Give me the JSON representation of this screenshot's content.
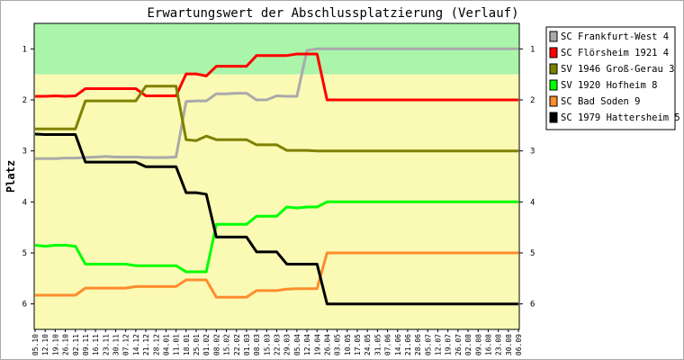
{
  "chart_data": {
    "type": "line",
    "title": "Erwartungswert der Abschlussplatzierung (Verlauf)",
    "ylabel": "Platz",
    "xlabel": "",
    "ylim": [
      0.5,
      6.5
    ],
    "y_inverted": true,
    "yticks": [
      1,
      2,
      3,
      4,
      5,
      6
    ],
    "grid": false,
    "legend_position": "right",
    "x": [
      "05.10",
      "12.10",
      "19.10",
      "26.10",
      "02.11",
      "09.11",
      "16.11",
      "23.11",
      "30.11",
      "07.12",
      "14.12",
      "21.12",
      "28.12",
      "04.01",
      "11.01",
      "18.01",
      "25.01",
      "01.02",
      "08.02",
      "15.02",
      "22.02",
      "01.03",
      "08.03",
      "15.03",
      "22.03",
      "29.03",
      "05.04",
      "12.04",
      "19.04",
      "26.04",
      "03.05",
      "10.05",
      "17.05",
      "24.05",
      "31.05",
      "07.06",
      "14.06",
      "21.06",
      "28.06",
      "05.07",
      "12.07",
      "19.07",
      "26.07",
      "02.08",
      "09.08",
      "16.08",
      "23.08",
      "30.08",
      "06.09"
    ],
    "bands": [
      {
        "from": 0.5,
        "to": 1.5,
        "color": "#aaf5aa"
      },
      {
        "from": 1.5,
        "to": 6.5,
        "color": "#fafab4"
      }
    ],
    "series": [
      {
        "name": "SC Frankfurt-West 4",
        "color": "#aaaaaa",
        "values": [
          3.15,
          3.15,
          3.15,
          3.14,
          3.14,
          3.13,
          3.12,
          3.11,
          3.12,
          3.12,
          3.12,
          3.13,
          3.13,
          3.13,
          3.12,
          2.03,
          2.02,
          2.02,
          1.88,
          1.88,
          1.87,
          1.87,
          2.0,
          2.0,
          1.92,
          1.93,
          1.93,
          1.03,
          1.0,
          1.0,
          1.0,
          1.0,
          1.0,
          1.0,
          1.0,
          1.0,
          1.0,
          1.0,
          1.0,
          1.0,
          1.0,
          1.0,
          1.0,
          1.0,
          1.0,
          1.0,
          1.0,
          1.0,
          1.0
        ]
      },
      {
        "name": "SC Flörsheim 1921 4",
        "color": "#ff0000",
        "values": [
          1.93,
          1.93,
          1.92,
          1.93,
          1.92,
          1.78,
          1.78,
          1.78,
          1.78,
          1.78,
          1.78,
          1.92,
          1.92,
          1.92,
          1.92,
          1.49,
          1.49,
          1.53,
          1.34,
          1.34,
          1.34,
          1.34,
          1.13,
          1.13,
          1.13,
          1.13,
          1.1,
          1.1,
          1.1,
          2.0,
          2.0,
          2.0,
          2.0,
          2.0,
          2.0,
          2.0,
          2.0,
          2.0,
          2.0,
          2.0,
          2.0,
          2.0,
          2.0,
          2.0,
          2.0,
          2.0,
          2.0,
          2.0,
          2.0
        ]
      },
      {
        "name": "SV 1946 Groß-Gerau 3",
        "color": "#808000",
        "values": [
          2.57,
          2.57,
          2.57,
          2.57,
          2.57,
          2.02,
          2.02,
          2.02,
          2.02,
          2.02,
          2.02,
          1.73,
          1.73,
          1.73,
          1.73,
          2.78,
          2.8,
          2.71,
          2.78,
          2.78,
          2.78,
          2.78,
          2.88,
          2.88,
          2.88,
          2.99,
          2.99,
          2.99,
          3.0,
          3.0,
          3.0,
          3.0,
          3.0,
          3.0,
          3.0,
          3.0,
          3.0,
          3.0,
          3.0,
          3.0,
          3.0,
          3.0,
          3.0,
          3.0,
          3.0,
          3.0,
          3.0,
          3.0,
          3.0
        ]
      },
      {
        "name": "SV 1920 Hofheim 8",
        "color": "#00ff00",
        "values": [
          4.85,
          4.87,
          4.85,
          4.85,
          4.87,
          5.22,
          5.22,
          5.22,
          5.22,
          5.22,
          5.25,
          5.25,
          5.25,
          5.25,
          5.25,
          5.37,
          5.37,
          5.37,
          4.44,
          4.44,
          4.44,
          4.44,
          4.28,
          4.28,
          4.28,
          4.1,
          4.12,
          4.1,
          4.1,
          4.0,
          4.0,
          4.0,
          4.0,
          4.0,
          4.0,
          4.0,
          4.0,
          4.0,
          4.0,
          4.0,
          4.0,
          4.0,
          4.0,
          4.0,
          4.0,
          4.0,
          4.0,
          4.0,
          4.0
        ]
      },
      {
        "name": "SC Bad Soden 9",
        "color": "#ff8c2d",
        "values": [
          5.83,
          5.83,
          5.83,
          5.83,
          5.83,
          5.69,
          5.69,
          5.69,
          5.69,
          5.69,
          5.66,
          5.66,
          5.66,
          5.66,
          5.66,
          5.53,
          5.53,
          5.53,
          5.87,
          5.87,
          5.87,
          5.87,
          5.74,
          5.74,
          5.74,
          5.71,
          5.7,
          5.7,
          5.7,
          5.0,
          5.0,
          5.0,
          5.0,
          5.0,
          5.0,
          5.0,
          5.0,
          5.0,
          5.0,
          5.0,
          5.0,
          5.0,
          5.0,
          5.0,
          5.0,
          5.0,
          5.0,
          5.0,
          5.0
        ]
      },
      {
        "name": "SC 1979 Hattersheim 5",
        "color": "#000000",
        "values": [
          2.67,
          2.68,
          2.68,
          2.68,
          2.68,
          3.22,
          3.22,
          3.22,
          3.22,
          3.22,
          3.22,
          3.31,
          3.31,
          3.31,
          3.31,
          3.82,
          3.82,
          3.85,
          4.69,
          4.69,
          4.69,
          4.69,
          4.98,
          4.98,
          4.98,
          5.22,
          5.22,
          5.22,
          5.22,
          6.0,
          6.0,
          6.0,
          6.0,
          6.0,
          6.0,
          6.0,
          6.0,
          6.0,
          6.0,
          6.0,
          6.0,
          6.0,
          6.0,
          6.0,
          6.0,
          6.0,
          6.0,
          6.0,
          6.0
        ]
      }
    ]
  }
}
